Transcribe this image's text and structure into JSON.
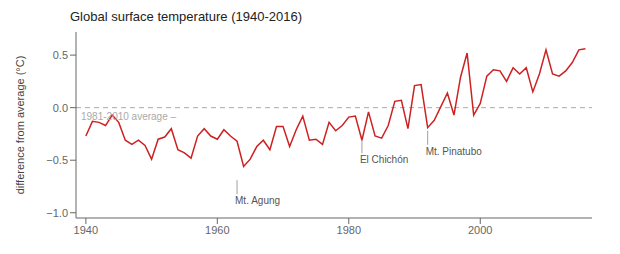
{
  "chart_data": {
    "type": "line",
    "title": "Global surface temperature (1940-2016)",
    "ylabel": "difference from average (°C)",
    "color": "#cc2222",
    "grid": false,
    "xlim": [
      1938.5,
      2017
    ],
    "ylim": [
      -1.05,
      0.72
    ],
    "xticks": [
      1940,
      1960,
      1980,
      2000
    ],
    "yticks": [
      {
        "value": -1.0,
        "label": "−1.0"
      },
      {
        "value": -0.5,
        "label": "−0.5"
      },
      {
        "value": 0.0,
        "label": "0.0"
      },
      0.5
    ],
    "reference_line": {
      "y": 0.0,
      "label": "1981-2010 average –",
      "color": "#aaaaaa",
      "line_style": "dashed"
    },
    "annotations": [
      {
        "label": "Mt. Agung",
        "x": 1963,
        "y": -0.69
      },
      {
        "label": "El Chichón",
        "x": 1982,
        "y": -0.3
      },
      {
        "label": "Mt. Pinatubo",
        "x": 1992,
        "y": -0.22
      }
    ],
    "x": [
      1940,
      1941,
      1942,
      1943,
      1944,
      1945,
      1946,
      1947,
      1948,
      1949,
      1950,
      1951,
      1952,
      1953,
      1954,
      1955,
      1956,
      1957,
      1958,
      1959,
      1960,
      1961,
      1962,
      1963,
      1964,
      1965,
      1966,
      1967,
      1968,
      1969,
      1970,
      1971,
      1972,
      1973,
      1974,
      1975,
      1976,
      1977,
      1978,
      1979,
      1980,
      1981,
      1982,
      1983,
      1984,
      1985,
      1986,
      1987,
      1988,
      1989,
      1990,
      1991,
      1992,
      1993,
      1994,
      1995,
      1996,
      1997,
      1998,
      1999,
      2000,
      2001,
      2002,
      2003,
      2004,
      2005,
      2006,
      2007,
      2008,
      2009,
      2010,
      2011,
      2012,
      2013,
      2014,
      2015,
      2016
    ],
    "values": [
      -0.27,
      -0.13,
      -0.14,
      -0.17,
      -0.07,
      -0.14,
      -0.31,
      -0.35,
      -0.31,
      -0.36,
      -0.49,
      -0.3,
      -0.28,
      -0.2,
      -0.4,
      -0.43,
      -0.48,
      -0.27,
      -0.2,
      -0.27,
      -0.3,
      -0.21,
      -0.27,
      -0.32,
      -0.56,
      -0.49,
      -0.37,
      -0.31,
      -0.4,
      -0.18,
      -0.18,
      -0.37,
      -0.21,
      -0.08,
      -0.31,
      -0.3,
      -0.35,
      -0.14,
      -0.22,
      -0.17,
      -0.09,
      -0.08,
      -0.31,
      -0.04,
      -0.27,
      -0.29,
      -0.17,
      0.06,
      0.07,
      -0.2,
      0.21,
      0.22,
      -0.19,
      -0.12,
      0.01,
      0.14,
      -0.07,
      0.29,
      0.52,
      -0.07,
      0.04,
      0.3,
      0.36,
      0.35,
      0.25,
      0.38,
      0.32,
      0.38,
      0.15,
      0.32,
      0.55,
      0.32,
      0.3,
      0.35,
      0.43,
      0.55,
      0.56
    ]
  }
}
